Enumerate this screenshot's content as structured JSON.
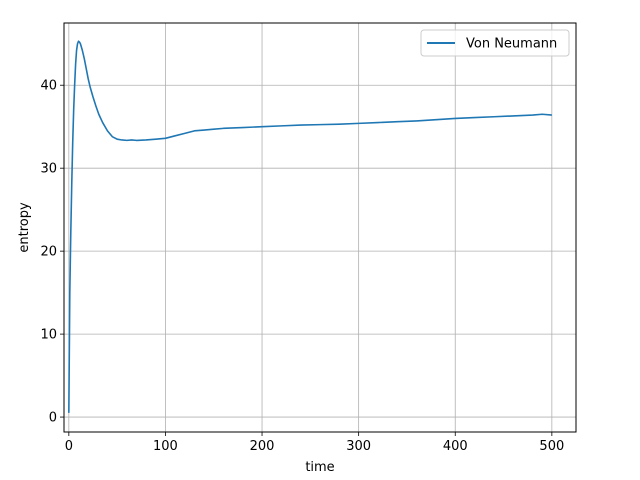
{
  "chart_data": {
    "type": "line",
    "title": "",
    "xlabel": "time",
    "ylabel": "entropy",
    "xlim": [
      -5,
      525
    ],
    "ylim": [
      -1.8,
      47.5
    ],
    "x_ticks": [
      0,
      100,
      200,
      300,
      400,
      500
    ],
    "y_ticks": [
      0,
      10,
      20,
      30,
      40
    ],
    "grid": true,
    "legend_position": "upper right",
    "colors": {
      "series": "#1f77b4",
      "grid": "#b0b0b0",
      "axis": "#000000"
    },
    "series": [
      {
        "name": "Von Neumann",
        "x": [
          0,
          1,
          2,
          3,
          4,
          5,
          6,
          7,
          8,
          9,
          10,
          11,
          12,
          14,
          16,
          18,
          20,
          22,
          25,
          28,
          31,
          35,
          40,
          45,
          50,
          55,
          60,
          65,
          70,
          80,
          90,
          100,
          110,
          120,
          130,
          140,
          150,
          160,
          170,
          180,
          190,
          200,
          220,
          240,
          260,
          280,
          300,
          320,
          340,
          360,
          380,
          400,
          420,
          440,
          460,
          480,
          490,
          500
        ],
        "y": [
          0.5,
          15,
          22,
          28,
          33,
          37,
          40,
          42.5,
          44.2,
          45.0,
          45.3,
          45.2,
          45.0,
          44.2,
          43.2,
          42.0,
          40.8,
          39.8,
          38.6,
          37.5,
          36.5,
          35.5,
          34.5,
          33.8,
          33.5,
          33.4,
          33.35,
          33.4,
          33.35,
          33.4,
          33.5,
          33.6,
          33.9,
          34.2,
          34.5,
          34.6,
          34.7,
          34.8,
          34.85,
          34.9,
          34.95,
          35.0,
          35.1,
          35.2,
          35.25,
          35.3,
          35.4,
          35.5,
          35.6,
          35.7,
          35.85,
          36.0,
          36.1,
          36.2,
          36.3,
          36.4,
          36.5,
          36.4
        ]
      }
    ]
  }
}
